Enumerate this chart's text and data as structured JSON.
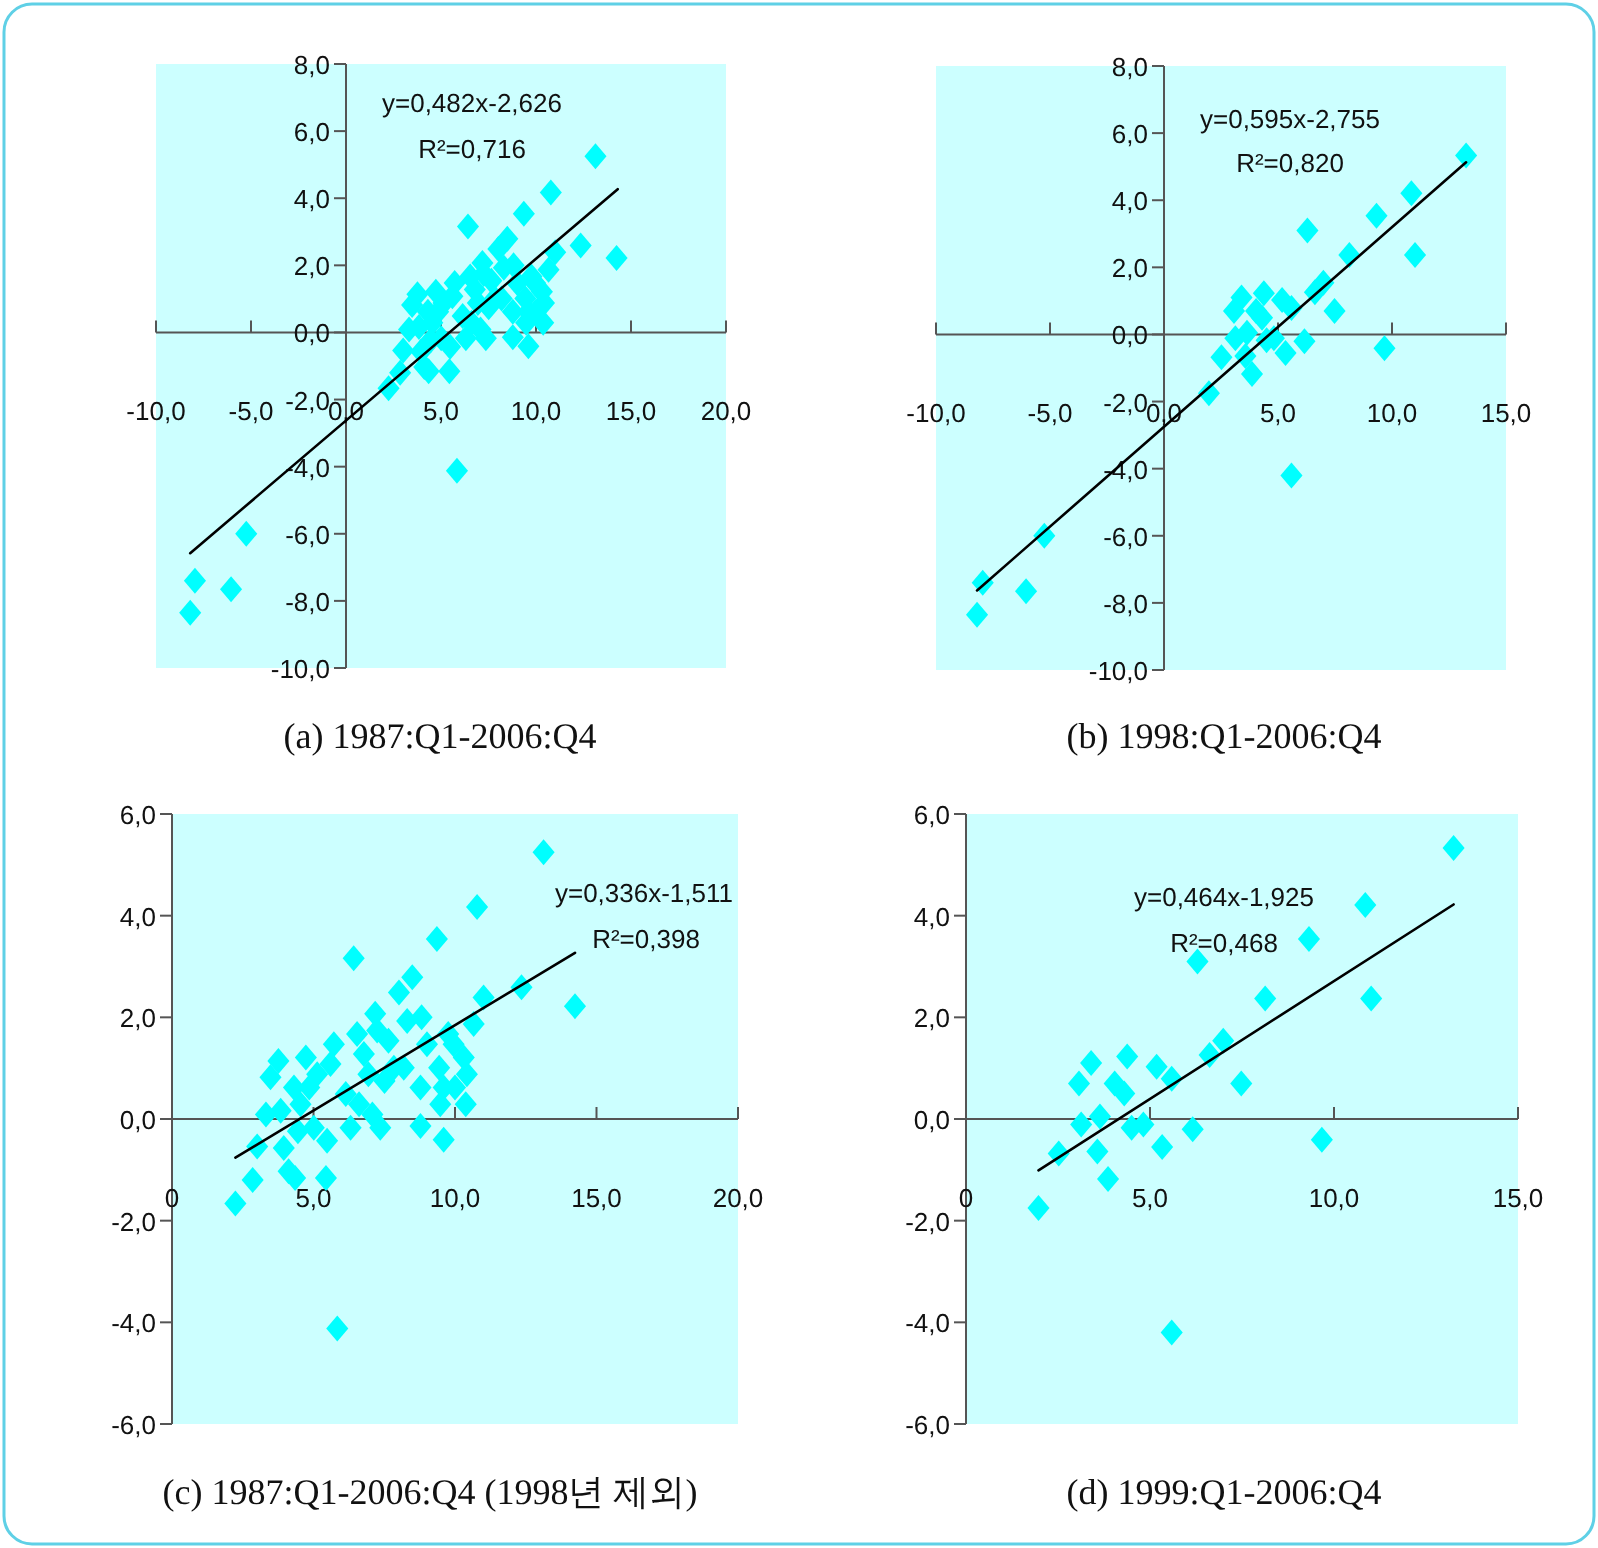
{
  "chart_data": [
    {
      "type": "scatter",
      "title": "(a)  1987:Q1-2006:Q4",
      "annotations": [
        "y=0,482x-2,626",
        "R²=0,716"
      ],
      "xlim": [
        -10,
        20
      ],
      "ylim": [
        -10,
        8
      ],
      "xticks": [
        {
          "value": -10,
          "label": "-10,0"
        },
        {
          "value": -5,
          "label": "-5,0"
        },
        {
          "value": 0,
          "label": "0,0"
        },
        {
          "value": 5,
          "label": "5,0"
        },
        {
          "value": 10,
          "label": "10,0"
        },
        {
          "value": 15,
          "label": "15,0"
        },
        {
          "value": 20,
          "label": "20,0"
        }
      ],
      "yticks": [
        {
          "value": -10,
          "label": "-10,0"
        },
        {
          "value": -8,
          "label": "-8,0"
        },
        {
          "value": -6,
          "label": "-6,0"
        },
        {
          "value": -4,
          "label": "-4,0"
        },
        {
          "value": -2,
          "label": "-2,0"
        },
        {
          "value": 0,
          "label": "0,0"
        },
        {
          "value": 2,
          "label": "2,0"
        },
        {
          "value": 4,
          "label": "4,0"
        },
        {
          "value": 6,
          "label": "6,0"
        },
        {
          "value": 8,
          "label": "8,0"
        }
      ],
      "series": [
        {
          "color": "#00ffff",
          "marker": "diamond",
          "x": [
            -8.2,
            -7.95,
            -6.05,
            -5.25,
            2.24,
            2.85,
            3.01,
            3.32,
            3.48,
            3.76,
            3.84,
            3.95,
            4.12,
            4.31,
            4.35,
            4.45,
            4.54,
            4.73,
            4.85,
            5.01,
            5.13,
            5.48,
            5.44,
            5.6,
            5.72,
            5.84,
            6.14,
            6.31,
            6.42,
            6.54,
            6.61,
            6.78,
            6.94,
            7.08,
            7.18,
            7.25,
            7.36,
            7.51,
            7.65,
            7.84,
            8.02,
            8.19,
            8.31,
            8.49,
            8.78,
            8.82,
            8.78,
            9.01,
            9.36,
            9.44,
            9.48,
            9.6,
            9.6,
            9.76,
            9.95,
            10.0,
            10.31,
            10.38,
            10.42,
            10.66,
            10.78,
            11.01,
            12.35,
            13.13,
            14.24
          ],
          "values": [
            -8.35,
            -7.4,
            -7.65,
            -6.0,
            -1.66,
            -1.2,
            -0.54,
            0.09,
            0.82,
            1.14,
            0.16,
            -0.57,
            -1.03,
            0.62,
            -1.16,
            -0.24,
            0.29,
            1.21,
            0.62,
            -0.17,
            0.88,
            -0.43,
            -1.16,
            1.08,
            1.47,
            -4.12,
            0.49,
            -0.17,
            3.16,
            1.67,
            0.29,
            1.28,
            0.88,
            0.09,
            2.07,
            1.74,
            -0.17,
            0.75,
            1.54,
            1.01,
            2.49,
            1.01,
            1.93,
            2.79,
            0.62,
            2.0,
            -0.14,
            1.47,
            3.54,
            1.01,
            0.29,
            0.62,
            -0.41,
            1.67,
            1.47,
            0.62,
            1.21,
            0.29,
            0.88,
            1.87,
            4.17,
            2.39,
            2.59,
            5.25,
            2.22
          ]
        },
        {
          "type": "line",
          "color": "#000000",
          "x": [
            -8.2,
            14.3
          ],
          "values": [
            -6.58,
            4.27
          ]
        }
      ]
    },
    {
      "type": "scatter",
      "title": "(b)  1998:Q1-2006:Q4",
      "annotations": [
        "y=0,595x-2,755",
        "R²=0,820"
      ],
      "xlim": [
        -10,
        15
      ],
      "ylim": [
        -10,
        8
      ],
      "xticks": [
        {
          "value": -10,
          "label": "-10,0"
        },
        {
          "value": -5,
          "label": "-5,0"
        },
        {
          "value": 0,
          "label": "0,0"
        },
        {
          "value": 5,
          "label": "5,0"
        },
        {
          "value": 10,
          "label": "10,0"
        },
        {
          "value": 15,
          "label": "15,0"
        }
      ],
      "yticks": [
        {
          "value": -10,
          "label": "-10,0"
        },
        {
          "value": -8,
          "label": "-8,0"
        },
        {
          "value": -6,
          "label": "-6,0"
        },
        {
          "value": -4,
          "label": "-4,0"
        },
        {
          "value": -2,
          "label": "-2,0"
        },
        {
          "value": 0,
          "label": "0,0"
        },
        {
          "value": 2,
          "label": "2,0"
        },
        {
          "value": 4,
          "label": "4,0"
        },
        {
          "value": 6,
          "label": "6,0"
        },
        {
          "value": 8,
          "label": "8,0"
        }
      ],
      "series": [
        {
          "color": "#00ffff",
          "marker": "diamond",
          "x": [
            -8.2,
            -7.95,
            -6.05,
            -5.25,
            1.97,
            2.52,
            3.07,
            3.13,
            3.4,
            3.57,
            3.64,
            3.86,
            4.04,
            4.3,
            4.38,
            4.5,
            4.82,
            5.18,
            5.33,
            5.59,
            5.59,
            6.16,
            6.29,
            6.62,
            6.99,
            7.48,
            8.13,
            9.32,
            9.67,
            10.85,
            11.01,
            13.25
          ],
          "values": [
            -8.35,
            -7.4,
            -7.65,
            -6.0,
            -1.75,
            -0.68,
            0.7,
            -0.11,
            1.1,
            -0.64,
            0.05,
            -1.18,
            0.7,
            0.5,
            1.23,
            -0.17,
            -0.11,
            1.03,
            -0.55,
            0.79,
            -4.2,
            -0.2,
            3.1,
            1.26,
            1.54,
            0.7,
            2.37,
            3.54,
            -0.41,
            4.21,
            2.37,
            5.33
          ]
        },
        {
          "type": "line",
          "color": "#000000",
          "x": [
            -8.2,
            13.25
          ],
          "values": [
            -7.63,
            5.13
          ]
        }
      ]
    },
    {
      "type": "scatter",
      "title": "(c)  1987:Q1-2006:Q4  (1998년 제외)",
      "annotations": [
        "y=0,336x-1,511",
        "R²=0,398"
      ],
      "xlim": [
        0,
        20
      ],
      "ylim": [
        -6,
        6
      ],
      "xticks": [
        0,
        {
          "value": 5,
          "label": "5,0"
        },
        {
          "value": 10,
          "label": "10,0"
        },
        {
          "value": 15,
          "label": "15,0"
        },
        {
          "value": 20,
          "label": "20,0"
        }
      ],
      "yticks": [
        {
          "value": -6,
          "label": "-6,0"
        },
        {
          "value": -4,
          "label": "-4,0"
        },
        {
          "value": -2,
          "label": "-2,0"
        },
        {
          "value": 0,
          "label": "0,0"
        },
        {
          "value": 2,
          "label": "2,0"
        },
        {
          "value": 4,
          "label": "4,0"
        },
        {
          "value": 6,
          "label": "6,0"
        }
      ],
      "series": [
        {
          "color": "#00ffff",
          "marker": "diamond",
          "x": [
            2.24,
            2.85,
            3.01,
            3.32,
            3.48,
            3.76,
            3.84,
            3.95,
            4.12,
            4.31,
            4.35,
            4.45,
            4.54,
            4.73,
            4.85,
            5.01,
            5.13,
            5.48,
            5.44,
            5.6,
            5.72,
            5.84,
            6.14,
            6.31,
            6.42,
            6.54,
            6.61,
            6.78,
            6.94,
            7.08,
            7.18,
            7.25,
            7.36,
            7.51,
            7.65,
            7.84,
            8.02,
            8.19,
            8.31,
            8.49,
            8.78,
            8.82,
            8.78,
            9.01,
            9.36,
            9.44,
            9.48,
            9.6,
            9.6,
            9.76,
            9.95,
            10.0,
            10.31,
            10.38,
            10.42,
            10.66,
            10.78,
            11.01,
            12.35,
            13.13,
            14.24
          ],
          "values": [
            -1.66,
            -1.2,
            -0.54,
            0.09,
            0.82,
            1.14,
            0.16,
            -0.57,
            -1.03,
            0.62,
            -1.16,
            -0.24,
            0.29,
            1.21,
            0.62,
            -0.17,
            0.88,
            -0.43,
            -1.16,
            1.08,
            1.47,
            -4.12,
            0.49,
            -0.17,
            3.16,
            1.67,
            0.29,
            1.28,
            0.88,
            0.09,
            2.07,
            1.74,
            -0.17,
            0.75,
            1.54,
            1.01,
            2.49,
            1.01,
            1.93,
            2.79,
            0.62,
            2.0,
            -0.14,
            1.47,
            3.54,
            1.01,
            0.29,
            0.62,
            -0.41,
            1.67,
            1.47,
            0.62,
            1.21,
            0.29,
            0.88,
            1.87,
            4.17,
            2.39,
            2.59,
            5.25,
            2.22
          ]
        },
        {
          "type": "line",
          "color": "#000000",
          "x": [
            2.24,
            14.24
          ],
          "values": [
            -0.76,
            3.27
          ]
        }
      ]
    },
    {
      "type": "scatter",
      "title": "(d)  1999:Q1-2006:Q4",
      "annotations": [
        "y=0,464x-1,925",
        "R²=0,468"
      ],
      "xlim": [
        0,
        15
      ],
      "ylim": [
        -6,
        6
      ],
      "xticks": [
        0,
        {
          "value": 5,
          "label": "5,0"
        },
        {
          "value": 10,
          "label": "10,0"
        },
        {
          "value": 15,
          "label": "15,0"
        }
      ],
      "yticks": [
        {
          "value": -6,
          "label": "-6,0"
        },
        {
          "value": -4,
          "label": "-4,0"
        },
        {
          "value": -2,
          "label": "-2,0"
        },
        {
          "value": 0,
          "label": "0,0"
        },
        {
          "value": 2,
          "label": "2,0"
        },
        {
          "value": 4,
          "label": "4,0"
        },
        {
          "value": 6,
          "label": "6,0"
        }
      ],
      "series": [
        {
          "color": "#00ffff",
          "marker": "diamond",
          "x": [
            1.97,
            2.52,
            3.07,
            3.13,
            3.4,
            3.57,
            3.64,
            3.86,
            4.04,
            4.3,
            4.38,
            4.5,
            4.82,
            5.18,
            5.33,
            5.59,
            5.59,
            6.16,
            6.29,
            6.62,
            6.99,
            7.48,
            8.13,
            9.32,
            9.67,
            10.85,
            11.01,
            13.25
          ],
          "values": [
            -1.75,
            -0.68,
            0.7,
            -0.11,
            1.1,
            -0.64,
            0.05,
            -1.18,
            0.7,
            0.5,
            1.23,
            -0.17,
            -0.11,
            1.03,
            -0.55,
            0.79,
            -4.2,
            -0.2,
            3.1,
            1.26,
            1.54,
            0.7,
            2.37,
            3.54,
            -0.41,
            4.21,
            2.37,
            5.33
          ]
        },
        {
          "type": "line",
          "color": "#000000",
          "x": [
            1.97,
            13.25
          ],
          "values": [
            -1.01,
            4.22
          ]
        }
      ]
    }
  ]
}
